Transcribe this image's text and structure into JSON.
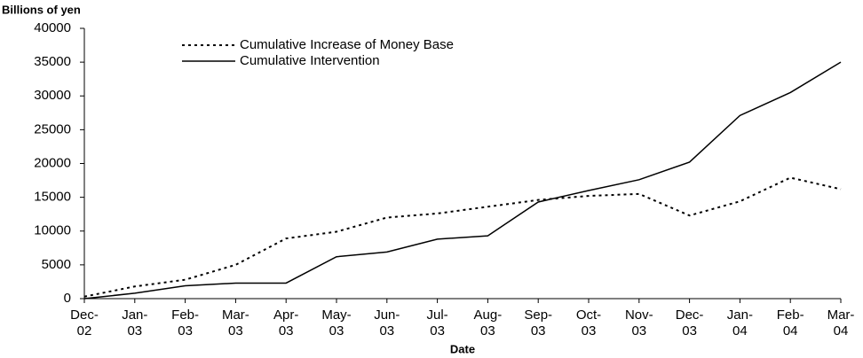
{
  "chart_data": {
    "type": "line",
    "y_axis_label": "Billions of yen",
    "x_axis_label": "Date",
    "categories": [
      "Dec-02",
      "Jan-03",
      "Feb-03",
      "Mar-03",
      "Apr-03",
      "May-03",
      "Jun-03",
      "Jul-03",
      "Aug-03",
      "Sep-03",
      "Oct-03",
      "Nov-03",
      "Dec-03",
      "Jan-04",
      "Feb-04",
      "Mar-04"
    ],
    "series": [
      {
        "name": "Cumulative Increase of Money Base",
        "color": "#000000",
        "dash": true,
        "values": [
          300,
          1800,
          2800,
          5000,
          8900,
          9900,
          12000,
          12600,
          13600,
          14600,
          15200,
          15500,
          12300,
          14400,
          17900,
          16200
        ]
      },
      {
        "name": "Cumulative Intervention",
        "color": "#000000",
        "dash": false,
        "values": [
          0,
          800,
          1900,
          2300,
          2300,
          6200,
          6900,
          8800,
          9300,
          14300,
          16000,
          17600,
          20200,
          27100,
          30500,
          35000
        ]
      }
    ],
    "ylim": [
      0,
      40000
    ],
    "yticks": [
      0,
      5000,
      10000,
      15000,
      20000,
      25000,
      30000,
      35000,
      40000
    ],
    "legend": "top-left"
  }
}
